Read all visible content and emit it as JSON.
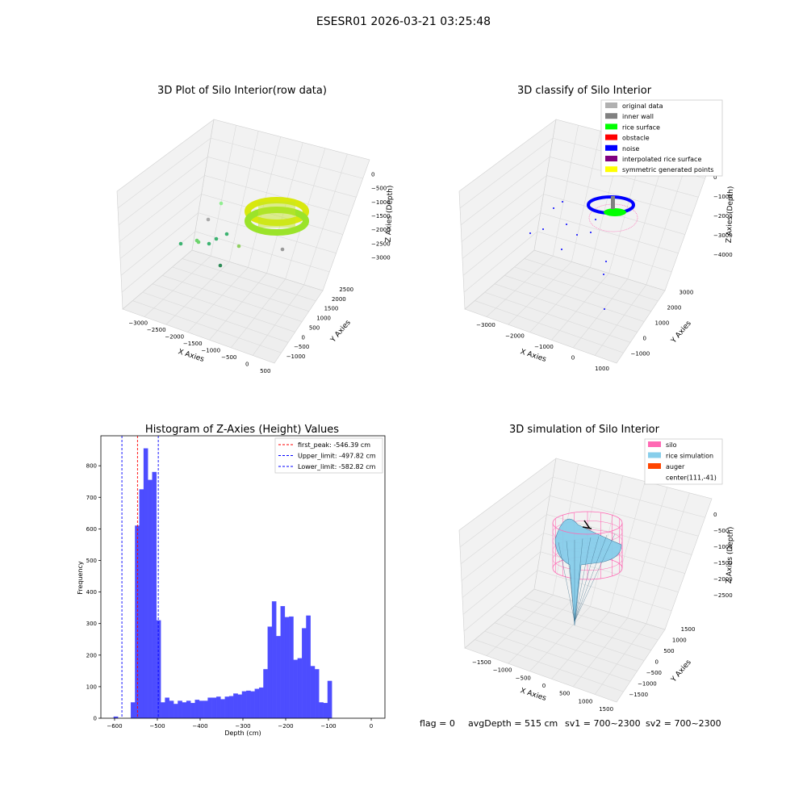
{
  "suptitle": "ESESR01 2026-03-21 03:25:48",
  "colors": {
    "grey_pane": "#f2f2f2",
    "grid": "#d9d9d9",
    "hist_bar": "#4d4dff",
    "peak_line": "#ff0000",
    "limit_line": "#0000ff",
    "silo": "#ff69b4",
    "rice": "#87ceeb",
    "auger": "#ff4500"
  },
  "footer": {
    "flag": "flag = 0",
    "avg_depth": "avgDepth = 515 cm",
    "sv1": "sv1 = 700~2300",
    "sv2": "sv2 = 700~2300"
  },
  "chart_data": [
    {
      "type": "scatter",
      "title": "3D Plot of Silo Interior(row data)",
      "xlabel": "X Axies",
      "ylabel": "Y Axies",
      "zlabel": "Z Axies (Depth)",
      "x_ticks": [
        "−3000",
        "−2500",
        "−2000",
        "−1500",
        "−1000",
        "−500",
        "0",
        "500"
      ],
      "y_ticks": [
        "−1000",
        "−500",
        "0",
        "500",
        "1000",
        "1500",
        "2000",
        "2500"
      ],
      "z_ticks": [
        "0",
        "−500",
        "−1000",
        "−1500",
        "−2000",
        "−2500",
        "−3000"
      ]
    },
    {
      "type": "scatter",
      "title": "3D classify of Silo Interior",
      "xlabel": "X Axies",
      "ylabel": "Y Axies",
      "zlabel": "Z Axies (Depth)",
      "x_ticks": [
        "−3000",
        "−2000",
        "−1000",
        "0",
        "1000"
      ],
      "y_ticks": [
        "−1000",
        "0",
        "1000",
        "2000",
        "3000"
      ],
      "z_ticks": [
        "0",
        "−1000",
        "−2000",
        "−3000",
        "−4000"
      ],
      "legend": [
        {
          "label": "original data",
          "color": "#b0b0b0"
        },
        {
          "label": "inner wall",
          "color": "#808080"
        },
        {
          "label": "rice surface",
          "color": "#00ff00"
        },
        {
          "label": "obstacle",
          "color": "#ff0000"
        },
        {
          "label": "noise",
          "color": "#0000ff"
        },
        {
          "label": "interpolated rice surface",
          "color": "#800080"
        },
        {
          "label": "symmetric generated points",
          "color": "#ffff00"
        }
      ]
    },
    {
      "type": "bar",
      "title": "Histogram of Z-Axies (Height) Values",
      "xlabel": "Depth (cm)",
      "ylabel": "Frequency",
      "xlim": [
        -632,
        32
      ],
      "ylim": [
        0,
        895
      ],
      "x_ticks": [
        -600,
        -500,
        -400,
        -300,
        -200,
        -100,
        0
      ],
      "x_tick_labels": [
        "−600",
        "−500",
        "−400",
        "−300",
        "−200",
        "−100",
        "0"
      ],
      "y_ticks": [
        0,
        100,
        200,
        300,
        400,
        500,
        600,
        700,
        800
      ],
      "bin_start": -602,
      "bin_width": 10,
      "values": [
        5,
        0,
        0,
        0,
        50,
        610,
        725,
        855,
        755,
        780,
        310,
        50,
        65,
        55,
        45,
        55,
        50,
        55,
        48,
        58,
        55,
        55,
        65,
        65,
        68,
        60,
        68,
        70,
        78,
        75,
        85,
        87,
        85,
        93,
        97,
        155,
        290,
        370,
        260,
        355,
        320,
        322,
        185,
        190,
        285,
        325,
        165,
        155,
        50,
        48,
        118
      ],
      "lines": [
        {
          "label": "first_peak: -546.39 cm",
          "x": -546.39,
          "color": "#ff0000"
        },
        {
          "label": "Upper_limit: -497.82 cm",
          "x": -497.82,
          "color": "#0000ff"
        },
        {
          "label": "Lower_limit: -582.82 cm",
          "x": -582.82,
          "color": "#0000ff"
        }
      ]
    },
    {
      "type": "area",
      "title": "3D simulation of Silo Interior",
      "xlabel": "X Axies",
      "ylabel": "Y Axies",
      "zlabel": "Z Axies (Depth)",
      "x_ticks": [
        "−1500",
        "−1000",
        "−500",
        "0",
        "500",
        "1000",
        "1500"
      ],
      "y_ticks": [
        "−1500",
        "−1000",
        "−500",
        "0",
        "500",
        "1000",
        "1500"
      ],
      "z_ticks": [
        "0",
        "−500",
        "−1000",
        "−1500",
        "−2000",
        "−2500"
      ],
      "legend": [
        {
          "label": "silo",
          "color": "#ff69b4"
        },
        {
          "label": "rice simulation",
          "color": "#87ceeb"
        },
        {
          "label": "auger",
          "color": "#ff4500"
        },
        {
          "label": "center(111,-41)",
          "color": ""
        }
      ]
    }
  ]
}
